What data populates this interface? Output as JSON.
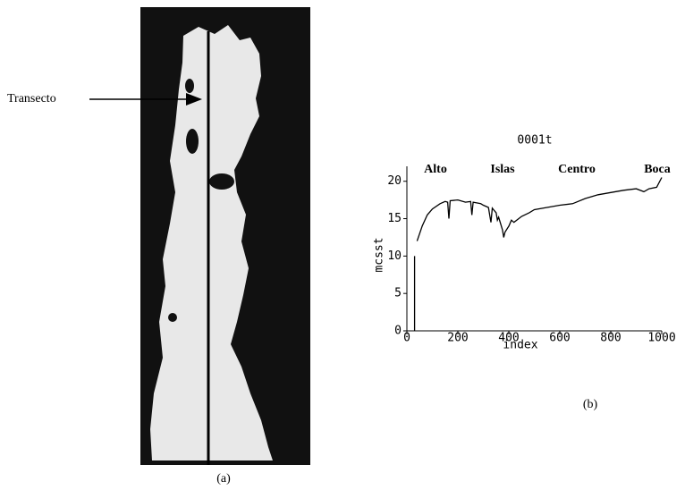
{
  "figure": {
    "transect_label": "Transecto",
    "label_a": "(a)",
    "label_b": "(b)"
  },
  "chart_data": {
    "type": "line",
    "title": "0001t",
    "xlabel": "index",
    "ylabel": "mcsst",
    "annotations": [
      "Alto",
      "Islas",
      "Centro",
      "Boca"
    ],
    "x": [
      30,
      30,
      35,
      40,
      60,
      80,
      100,
      130,
      150,
      160,
      165,
      170,
      200,
      230,
      250,
      255,
      260,
      290,
      300,
      320,
      330,
      335,
      340,
      350,
      355,
      360,
      375,
      380,
      385,
      400,
      410,
      420,
      450,
      480,
      500,
      550,
      600,
      650,
      700,
      750,
      800,
      850,
      900,
      930,
      950,
      980,
      1000
    ],
    "values": [
      0,
      10,
      null,
      12,
      14,
      15.5,
      16.3,
      17,
      17.3,
      17.2,
      15,
      17.4,
      17.5,
      17.2,
      17.3,
      15.5,
      17.2,
      17.0,
      16.8,
      16.5,
      14.5,
      16.4,
      16.2,
      15.8,
      14.8,
      15.2,
      13.5,
      12.5,
      13.2,
      14.0,
      14.8,
      14.5,
      15.3,
      15.8,
      16.2,
      16.5,
      16.8,
      17.0,
      17.7,
      18.2,
      18.5,
      18.8,
      19.0,
      18.6,
      19.0,
      19.2,
      20.5
    ],
    "color": "#000000",
    "xlim": [
      0,
      1000
    ],
    "xticks": [
      0,
      200,
      400,
      600,
      800,
      1000
    ],
    "ylim": [
      0,
      22
    ],
    "yticks": [
      0,
      5,
      10,
      15,
      20
    ]
  }
}
